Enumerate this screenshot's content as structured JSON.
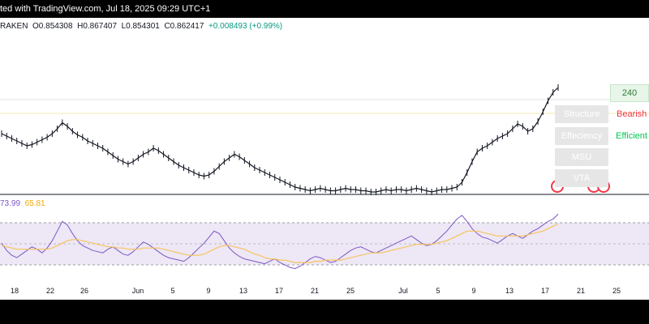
{
  "header": {
    "published": "ted with TradingView.com, Jul 18, 2025 09:29 UTC+1"
  },
  "ohlc": {
    "exchange": "RAKEN",
    "o_label": "O",
    "o": "0.854308",
    "h_label": "H",
    "h": "0.867407",
    "l_label": "L",
    "l": "0.854301",
    "c_label": "C",
    "c": "0.862417",
    "change": "+0.008493 (+0.99%)"
  },
  "panel": {
    "value": "240",
    "rows": [
      {
        "label": "Structure",
        "status": "Bearish",
        "color": "#f23645"
      },
      {
        "label": "Effeciency",
        "status": "Efficient",
        "color": "#00c853"
      },
      {
        "label": "MSU",
        "status": "",
        "color": "#131722"
      },
      {
        "label": "VTA",
        "status": "",
        "color": "#131722"
      }
    ]
  },
  "rsi": {
    "value1": "73.99",
    "value2": "65.81",
    "rsi_color": "#7e57c2",
    "ma_color": "#f7c55a",
    "band_color": "#ede7f6"
  },
  "chart_data": {
    "type": "line",
    "title": "",
    "price_axis_visible": false,
    "x_ticks": [
      "18",
      "22",
      "26",
      "Jun",
      "5",
      "9",
      "13",
      "17",
      "21",
      "25",
      "Jul",
      "5",
      "9",
      "13",
      "17",
      "21",
      "25"
    ],
    "series": [
      {
        "values": [
          0.818,
          0.816,
          0.814,
          0.812,
          0.81,
          0.808,
          0.809,
          0.811,
          0.813,
          0.815,
          0.818,
          0.822,
          0.827,
          0.824,
          0.82,
          0.817,
          0.815,
          0.812,
          0.81,
          0.808,
          0.806,
          0.803,
          0.8,
          0.797,
          0.795,
          0.793,
          0.795,
          0.798,
          0.801,
          0.803,
          0.806,
          0.804,
          0.801,
          0.798,
          0.795,
          0.792,
          0.79,
          0.788,
          0.786,
          0.784,
          0.783,
          0.784,
          0.787,
          0.791,
          0.795,
          0.798,
          0.801,
          0.799,
          0.796,
          0.793,
          0.79,
          0.788,
          0.786,
          0.784,
          0.782,
          0.78,
          0.778,
          0.776,
          0.774,
          0.773,
          0.772,
          0.771,
          0.772,
          0.773,
          0.772,
          0.771,
          0.771,
          0.772,
          0.773,
          0.772,
          0.772,
          0.771,
          0.771,
          0.77,
          0.77,
          0.771,
          0.772,
          0.771,
          0.772,
          0.772,
          0.771,
          0.772,
          0.773,
          0.772,
          0.771,
          0.77,
          0.771,
          0.772,
          0.772,
          0.773,
          0.774,
          0.778,
          0.786,
          0.795,
          0.803,
          0.806,
          0.808,
          0.811,
          0.814,
          0.816,
          0.818,
          0.822,
          0.826,
          0.824,
          0.82,
          0.822,
          0.828,
          0.836,
          0.845,
          0.852,
          0.856
        ]
      }
    ],
    "rsi_series": [
      {
        "name": "73.99",
        "values": [
          50,
          44,
          40,
          38,
          41,
          44,
          47,
          45,
          42,
          46,
          52,
          60,
          68,
          65,
          58,
          52,
          48,
          46,
          44,
          43,
          42,
          45,
          47,
          44,
          41,
          40,
          43,
          47,
          51,
          49,
          46,
          43,
          40,
          38,
          37,
          36,
          35,
          38,
          42,
          46,
          50,
          55,
          60,
          58,
          52,
          46,
          42,
          39,
          37,
          36,
          35,
          34,
          33,
          35,
          37,
          34,
          32,
          30,
          29,
          31,
          34,
          37,
          39,
          38,
          36,
          34,
          35,
          38,
          41,
          44,
          46,
          47,
          45,
          43,
          42,
          44,
          46,
          48,
          50,
          52,
          54,
          56,
          53,
          50,
          48,
          49,
          52,
          56,
          60,
          65,
          70,
          73,
          68,
          62,
          58,
          55,
          54,
          52,
          50,
          53,
          56,
          58,
          56,
          54,
          57,
          60,
          62,
          65,
          68,
          70,
          73.99
        ]
      },
      {
        "name": "65.81",
        "values": [
          48,
          47,
          46,
          45,
          45,
          45,
          45,
          45,
          45,
          45,
          46,
          48,
          50,
          52,
          53,
          53,
          52,
          51,
          50,
          49,
          48,
          47,
          47,
          46,
          46,
          45,
          45,
          45,
          46,
          46,
          46,
          46,
          45,
          44,
          43,
          42,
          41,
          40,
          40,
          40,
          41,
          43,
          45,
          47,
          48,
          48,
          47,
          46,
          45,
          43,
          41,
          40,
          38,
          37,
          37,
          36,
          36,
          35,
          34,
          34,
          34,
          34,
          35,
          35,
          36,
          36,
          36,
          36,
          37,
          38,
          39,
          40,
          41,
          42,
          42,
          42,
          43,
          44,
          45,
          46,
          47,
          48,
          49,
          49,
          49,
          49,
          50,
          51,
          52,
          54,
          56,
          58,
          60,
          60,
          60,
          59,
          58,
          57,
          56,
          56,
          56,
          56,
          56,
          56,
          57,
          58,
          59,
          60,
          62,
          64,
          65.81
        ]
      }
    ]
  }
}
